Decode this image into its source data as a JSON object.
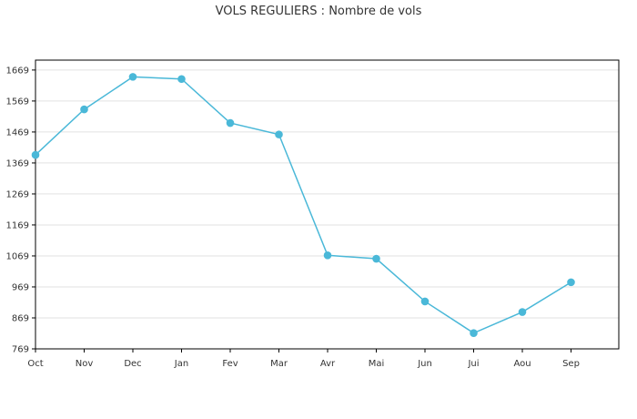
{
  "chart_data": {
    "type": "line",
    "title": "VOLS REGULIERS : Nombre de vols",
    "xlabel": "",
    "ylabel": "",
    "categories": [
      "Oct",
      "Nov",
      "Dec",
      "Jan",
      "Fev",
      "Mar",
      "Avr",
      "Mai",
      "Jun",
      "Jui",
      "Aou",
      "Sep"
    ],
    "series": [
      {
        "values": [
          1395,
          1542,
          1647,
          1640,
          1498,
          1461,
          1071,
          1060,
          922,
          820,
          888,
          984
        ]
      }
    ],
    "yticks": [
      769,
      869,
      969,
      1069,
      1169,
      1269,
      1369,
      1469,
      1569,
      1669
    ],
    "ylim": [
      769,
      1701
    ],
    "grid": true,
    "colors": {
      "line": "#4ab8d8",
      "marker": "#4ab8d8",
      "grid": "#e2e2e2",
      "axis": "#000000"
    }
  }
}
